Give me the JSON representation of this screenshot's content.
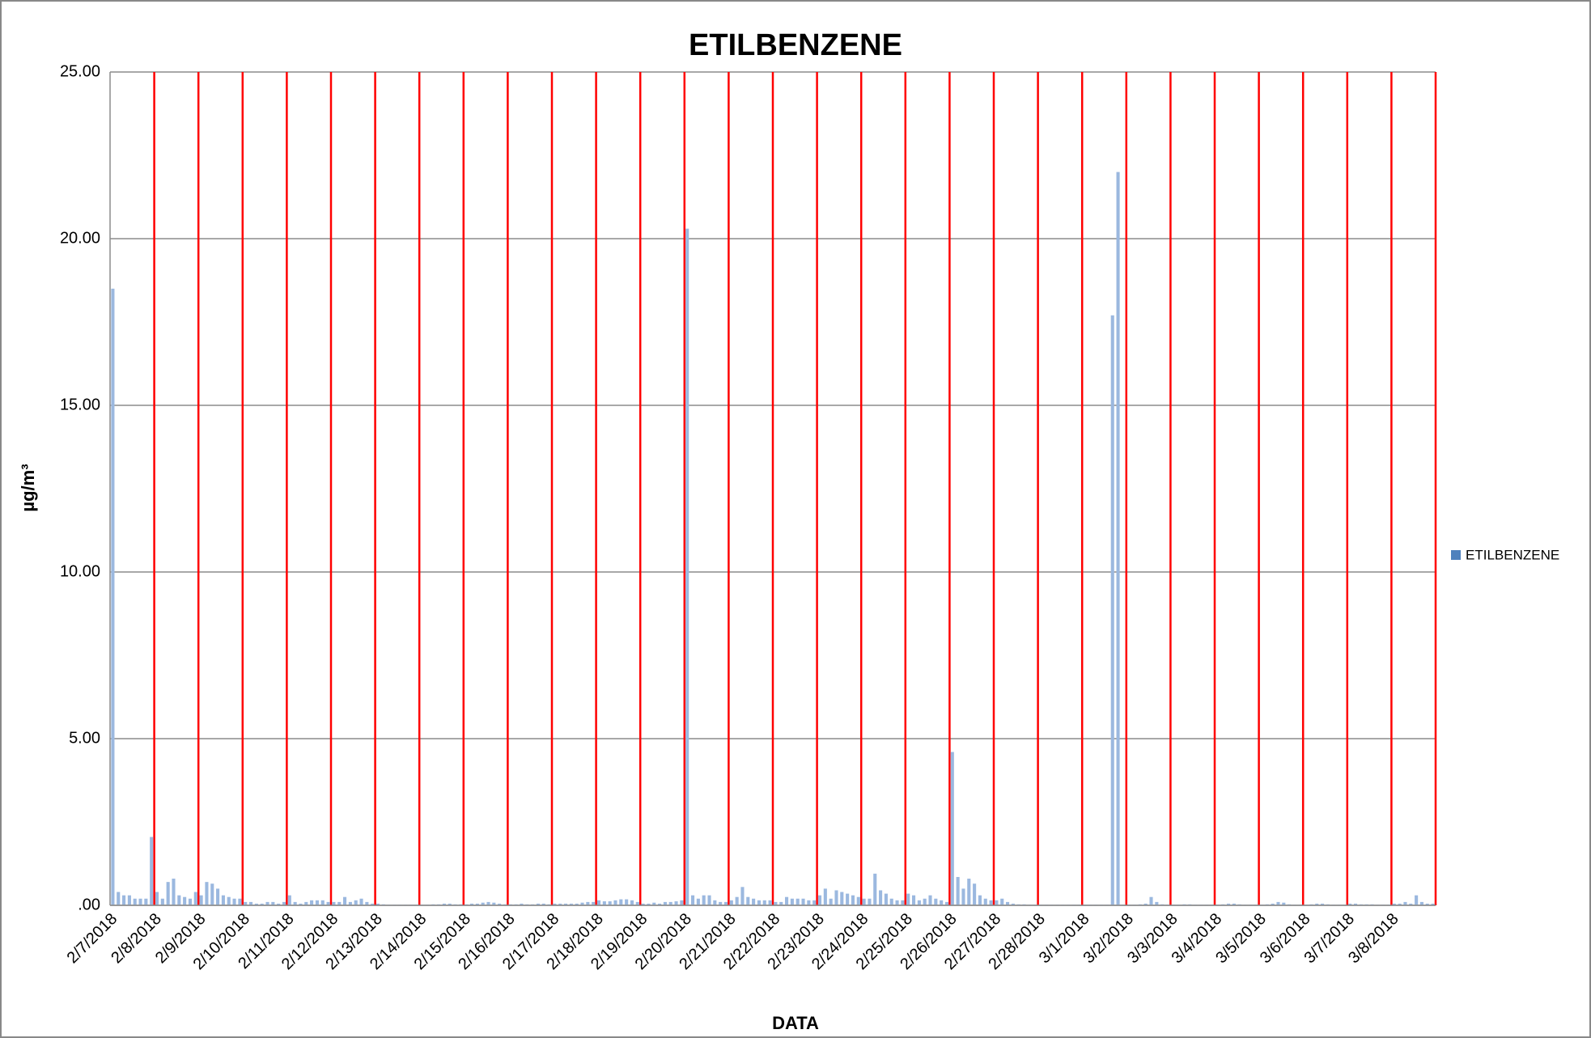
{
  "chart_data": {
    "type": "bar",
    "title": "ETILBENZENE",
    "x_label": "DATA",
    "y_label": "µg/m³",
    "categories": [
      "2/7/2018",
      null,
      null,
      null,
      null,
      null,
      null,
      null,
      "2/8/2018",
      null,
      null,
      null,
      null,
      null,
      null,
      null,
      "2/9/2018",
      null,
      null,
      null,
      null,
      null,
      null,
      null,
      "2/10/2018",
      null,
      null,
      null,
      null,
      null,
      null,
      null,
      "2/11/2018",
      null,
      null,
      null,
      null,
      null,
      null,
      null,
      "2/12/2018",
      null,
      null,
      null,
      null,
      null,
      null,
      null,
      "2/13/2018",
      null,
      null,
      null,
      null,
      null,
      null,
      null,
      "2/14/2018",
      null,
      null,
      null,
      null,
      null,
      null,
      null,
      "2/15/2018",
      null,
      null,
      null,
      null,
      null,
      null,
      null,
      "2/16/2018",
      null,
      null,
      null,
      null,
      null,
      null,
      null,
      "2/17/2018",
      null,
      null,
      null,
      null,
      null,
      null,
      null,
      "2/18/2018",
      null,
      null,
      null,
      null,
      null,
      null,
      null,
      "2/19/2018",
      null,
      null,
      null,
      null,
      null,
      null,
      null,
      "2/20/2018",
      null,
      null,
      null,
      null,
      null,
      null,
      null,
      "2/21/2018",
      null,
      null,
      null,
      null,
      null,
      null,
      null,
      "2/22/2018",
      null,
      null,
      null,
      null,
      null,
      null,
      null,
      "2/23/2018",
      null,
      null,
      null,
      null,
      null,
      null,
      null,
      "2/24/2018",
      null,
      null,
      null,
      null,
      null,
      null,
      null,
      "2/25/2018",
      null,
      null,
      null,
      null,
      null,
      null,
      null,
      "2/26/2018",
      null,
      null,
      null,
      null,
      null,
      null,
      null,
      "2/27/2018",
      null,
      null,
      null,
      null,
      null,
      null,
      null,
      "2/28/2018",
      null,
      null,
      null,
      null,
      null,
      null,
      null,
      "3/1/2018",
      null,
      null,
      null,
      null,
      null,
      null,
      null,
      "3/2/2018",
      null,
      null,
      null,
      null,
      null,
      null,
      null,
      "3/3/2018",
      null,
      null,
      null,
      null,
      null,
      null,
      null,
      "3/4/2018",
      null,
      null,
      null,
      null,
      null,
      null,
      null,
      "3/5/2018",
      null,
      null,
      null,
      null,
      null,
      null,
      null,
      "3/6/2018",
      null,
      null,
      null,
      null,
      null,
      null,
      null,
      "3/7/2018",
      null,
      null,
      null,
      null,
      null,
      null,
      null,
      "3/8/2018",
      null,
      null,
      null,
      null,
      null,
      null,
      null
    ],
    "series": [
      {
        "name": "ETILBENZENE",
        "color": "#9bb8df",
        "legend_color": "#4f81bd",
        "values": [
          18.5,
          0.4,
          0.3,
          0.3,
          0.2,
          0.2,
          0.2,
          2.05,
          0.4,
          0.2,
          0.7,
          0.8,
          0.3,
          0.25,
          0.2,
          0.4,
          0.3,
          0.7,
          0.65,
          0.5,
          0.3,
          0.25,
          0.2,
          0.2,
          0.1,
          0.1,
          0.05,
          0.05,
          0.1,
          0.1,
          0.05,
          0.1,
          0.3,
          0.1,
          0.05,
          0.1,
          0.15,
          0.15,
          0.15,
          0.1,
          0.1,
          0.1,
          0.25,
          0.1,
          0.15,
          0.2,
          0.1,
          0.05,
          0.05,
          0.03,
          0.02,
          0.02,
          0.02,
          0.02,
          0.02,
          0.02,
          0.02,
          0.02,
          0.03,
          0.03,
          0.05,
          0.05,
          0.03,
          0.03,
          0.03,
          0.05,
          0.05,
          0.08,
          0.1,
          0.08,
          0.05,
          0.03,
          0.03,
          0.03,
          0.05,
          0.03,
          0.03,
          0.05,
          0.05,
          0.03,
          0.05,
          0.05,
          0.05,
          0.05,
          0.05,
          0.08,
          0.1,
          0.1,
          0.15,
          0.12,
          0.12,
          0.15,
          0.18,
          0.18,
          0.15,
          0.1,
          0.05,
          0.05,
          0.08,
          0.05,
          0.1,
          0.1,
          0.12,
          0.15,
          20.3,
          0.3,
          0.2,
          0.3,
          0.3,
          0.15,
          0.1,
          0.1,
          0.15,
          0.25,
          0.55,
          0.25,
          0.2,
          0.15,
          0.15,
          0.15,
          0.1,
          0.1,
          0.25,
          0.2,
          0.2,
          0.2,
          0.15,
          0.15,
          0.3,
          0.5,
          0.2,
          0.45,
          0.4,
          0.35,
          0.3,
          0.25,
          0.2,
          0.2,
          0.95,
          0.45,
          0.35,
          0.2,
          0.15,
          0.15,
          0.35,
          0.3,
          0.15,
          0.2,
          0.3,
          0.2,
          0.15,
          0.1,
          4.6,
          0.85,
          0.5,
          0.8,
          0.65,
          0.3,
          0.2,
          0.15,
          0.15,
          0.2,
          0.1,
          0.05,
          0.03,
          0.03,
          0.02,
          0.02,
          0.02,
          0.02,
          0.02,
          0.02,
          0.02,
          0.02,
          0.02,
          0.02,
          0.02,
          0.02,
          0.02,
          0.02,
          0.02,
          17.7,
          22.0,
          0.02,
          0.02,
          0.02,
          0.03,
          0.05,
          0.25,
          0.1,
          0.03,
          0.02,
          0.02,
          0.02,
          0.03,
          0.03,
          0.02,
          0.02,
          0.02,
          0.02,
          0.02,
          0.03,
          0.05,
          0.05,
          0.03,
          0.02,
          0.02,
          0.02,
          0.02,
          0.03,
          0.05,
          0.1,
          0.08,
          0.03,
          0.02,
          0.02,
          0.02,
          0.03,
          0.05,
          0.05,
          0.03,
          0.02,
          0.02,
          0.02,
          0.05,
          0.05,
          0.03,
          0.03,
          0.03,
          0.02,
          0.02,
          0.02,
          0.05,
          0.05,
          0.1,
          0.05,
          0.3,
          0.1,
          0.05,
          0.05
        ]
      }
    ],
    "ylim": [
      0,
      25
    ],
    "yticks": [
      {
        "value": 0,
        "label": ".00"
      },
      {
        "value": 5,
        "label": "5.00"
      },
      {
        "value": 10,
        "label": "10.00"
      },
      {
        "value": 15,
        "label": "15.00"
      },
      {
        "value": 20,
        "label": "20.00"
      },
      {
        "value": 25,
        "label": "25.00"
      }
    ],
    "grid": true,
    "separator_color": "#ff0000",
    "legend": "right"
  }
}
